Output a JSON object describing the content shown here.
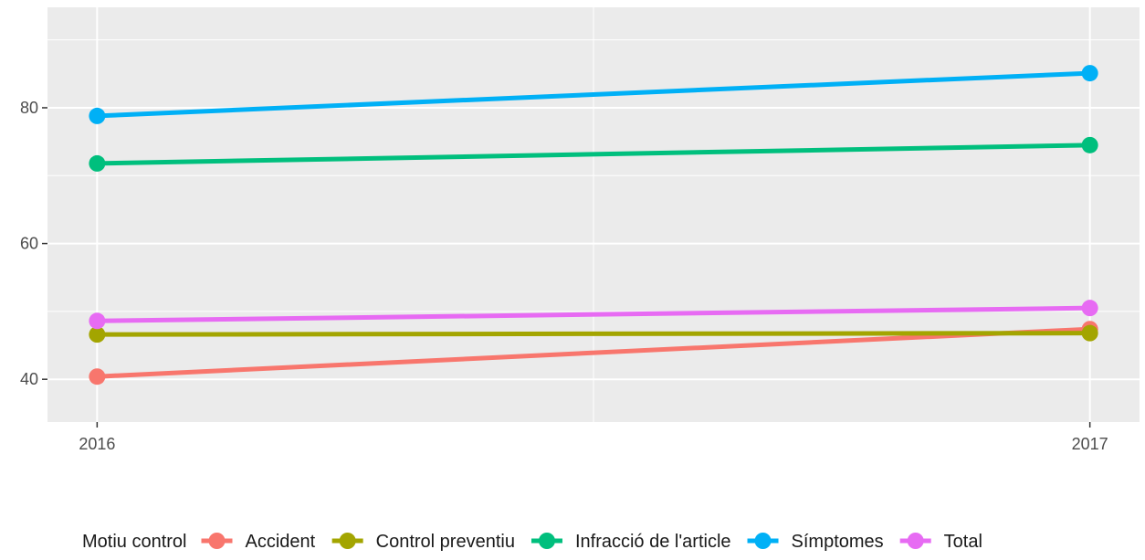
{
  "chart_data": {
    "type": "line",
    "x": [
      2016,
      2017
    ],
    "x_tick_labels": [
      "2016",
      "2017"
    ],
    "y_ticks": [
      40,
      60,
      80
    ],
    "y_tick_labels": [
      "40",
      "60",
      "80"
    ],
    "ylim": [
      33.7,
      94.8
    ],
    "xlim": [
      2015.95,
      2017.05
    ],
    "grid": true,
    "legend_placement": "bottom",
    "legend_title": "Motiu control",
    "series": [
      {
        "name": "Accident",
        "color": "#F8766D",
        "values": [
          40.4,
          47.4
        ]
      },
      {
        "name": "Control preventiu",
        "color": "#A3A500",
        "values": [
          46.6,
          46.8
        ]
      },
      {
        "name": "Infracció de l'article",
        "color": "#00BF7D",
        "values": [
          71.8,
          74.5
        ]
      },
      {
        "name": "Símptomes",
        "color": "#00B0F6",
        "values": [
          78.8,
          85.1
        ]
      },
      {
        "name": "Total",
        "color": "#E76BF3",
        "values": [
          48.6,
          50.5
        ]
      }
    ]
  }
}
